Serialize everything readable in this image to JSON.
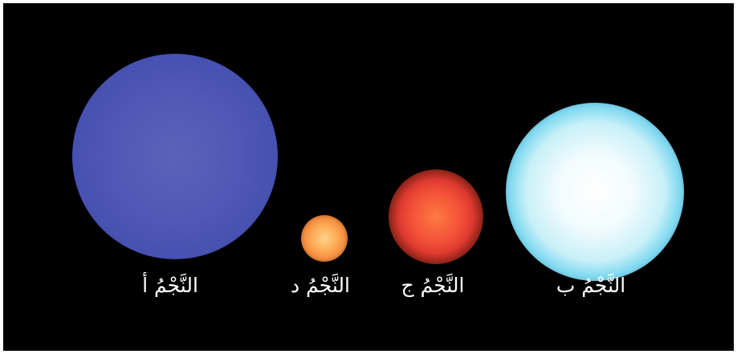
{
  "labels": {
    "star_a": "النَّجْمُ أ",
    "star_b": "النَّجْمُ ب",
    "star_c": "النَّجْمُ ج",
    "star_d": "النَّجْمُ د"
  },
  "colors": {
    "background": "#000000",
    "star_a": "#5058b6",
    "star_b": "#e8f8fc",
    "star_c": "#f25038",
    "star_d": "#ffb05a",
    "label_text": "#ffffff"
  }
}
